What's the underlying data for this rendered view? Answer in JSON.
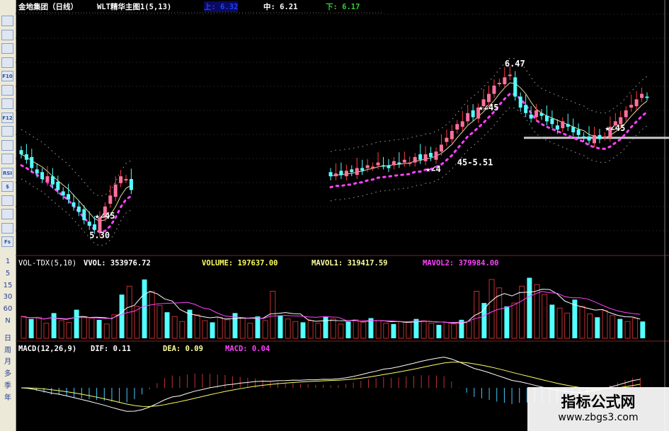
{
  "header": {
    "stock": "金地集团（日线）",
    "indicator": "WLT精华主图1(5,13)",
    "upper_label": "上: 6.32",
    "mid_label": "中: 6.21",
    "lower_label": "下: 6.17"
  },
  "volume_header": {
    "name": "VOL-TDX(5,10)",
    "vvol": "VVOL: 353976.72",
    "volume": "VOLUME: 197637.00",
    "mavol1": "MAVOL1: 319417.59",
    "mavol2": "MAVOL2: 379984.00"
  },
  "macd_header": {
    "name": "MACD(12,26,9)",
    "dif": "DIF: 0.11",
    "dea": "DEA: 0.09",
    "macd": "MACD: 0.04"
  },
  "toolbar": {
    "icons": [
      "kline-icon",
      "trend-icon",
      "bars-icon",
      "table-icon",
      "fundamentals-icon",
      "notes-icon",
      "news-icon",
      "formula-icon",
      "portfolio-icon",
      "window-icon",
      "wave-icon",
      "rsi-icon",
      "money-icon",
      "move-icon",
      "exit-icon",
      "pencil-icon",
      "fs-icon"
    ],
    "icon_labels": [
      "",
      "",
      "",
      "",
      "F10",
      "",
      "",
      "F12",
      "",
      "",
      "",
      "RSI",
      "$",
      "",
      "",
      "",
      "Fs"
    ],
    "periods": [
      "1",
      "5",
      "15",
      "30",
      "60",
      "N",
      "日",
      "周",
      "月",
      "多",
      "季",
      "年"
    ]
  },
  "watermark": {
    "title": "指标公式网",
    "url": "www.zbgs3.com"
  },
  "colors": {
    "up": "#ff3c3c",
    "down": "#54ffff",
    "ma_dots": "#ff44ff",
    "channel": "#8a8a8a",
    "yellow": "#ffff00",
    "dif": "#ffffff",
    "dea": "#ffff66",
    "support_line": "#c8c8c8"
  },
  "chart_data": {
    "type": "candlestick",
    "price_range": [
      5.2,
      6.9
    ],
    "support_price": 6.0,
    "segments": [
      {
        "closes": [
          5.88,
          5.84,
          5.78,
          5.74,
          5.7,
          5.72,
          5.66,
          5.62,
          5.58,
          5.55,
          5.5,
          5.46,
          5.4,
          5.36,
          5.33,
          5.42,
          5.5,
          5.58,
          5.66,
          5.72,
          5.7,
          5.62
        ]
      },
      {
        "closes": [
          5.72,
          5.74,
          5.73,
          5.76,
          5.75,
          5.78,
          5.76,
          5.8,
          5.79,
          5.82,
          5.8,
          5.78,
          5.83,
          5.81,
          5.84,
          5.82,
          5.86,
          5.84,
          5.88,
          5.86,
          5.9,
          5.95,
          6.0,
          6.05,
          6.1,
          6.12,
          6.18,
          6.15,
          6.22,
          6.28,
          6.32,
          6.38,
          6.4,
          6.44,
          6.46,
          6.3,
          6.22,
          6.18,
          6.14,
          6.2,
          6.16,
          6.12,
          6.1,
          6.06,
          6.12,
          6.08,
          6.04,
          6.02,
          6.0,
          5.98,
          6.02,
          5.99,
          6.01,
          6.08,
          6.12,
          6.15,
          6.2,
          6.24,
          6.28,
          6.32,
          6.3
        ]
      }
    ],
    "annotations": [
      {
        "text": "★∠45",
        "segment": 0,
        "bar": 14,
        "price": 5.41,
        "color": "#ffffff"
      },
      {
        "text": "5.30",
        "segment": 0,
        "bar": 13,
        "price": 5.27,
        "color": "#ffffff"
      },
      {
        "text": "★∠4",
        "segment": 1,
        "bar": 18,
        "price": 5.75,
        "color": "#ffffff"
      },
      {
        "text": "45-5.51",
        "segment": 1,
        "bar": 24,
        "price": 5.8,
        "color": "#ffffff"
      },
      {
        "text": "★∠45",
        "segment": 1,
        "bar": 28,
        "price": 6.2,
        "color": "#ffffff"
      },
      {
        "text": "6.47",
        "segment": 1,
        "bar": 33,
        "price": 6.52,
        "color": "#ffffff"
      },
      {
        "text": "★∠45",
        "segment": 1,
        "bar": 52,
        "price": 6.05,
        "color": "#ffffff"
      }
    ],
    "volumes": [
      260,
      230,
      250,
      180,
      300,
      210,
      190,
      340,
      260,
      240,
      220,
      170,
      280,
      520,
      620,
      380,
      700,
      560,
      390,
      310,
      260,
      200,
      340,
      280,
      210,
      190,
      250,
      220,
      300,
      240,
      180,
      260,
      210,
      560,
      270,
      230,
      200,
      190,
      210,
      180,
      260,
      230,
      170,
      200,
      220,
      190,
      240,
      210,
      180,
      170,
      200,
      190,
      230,
      210,
      180,
      160,
      190,
      170,
      220,
      200,
      560,
      420,
      700,
      600,
      380,
      420,
      620,
      720,
      640,
      520,
      400,
      360,
      300,
      460,
      380,
      290,
      250,
      330,
      270,
      230,
      200,
      240,
      200
    ]
  }
}
